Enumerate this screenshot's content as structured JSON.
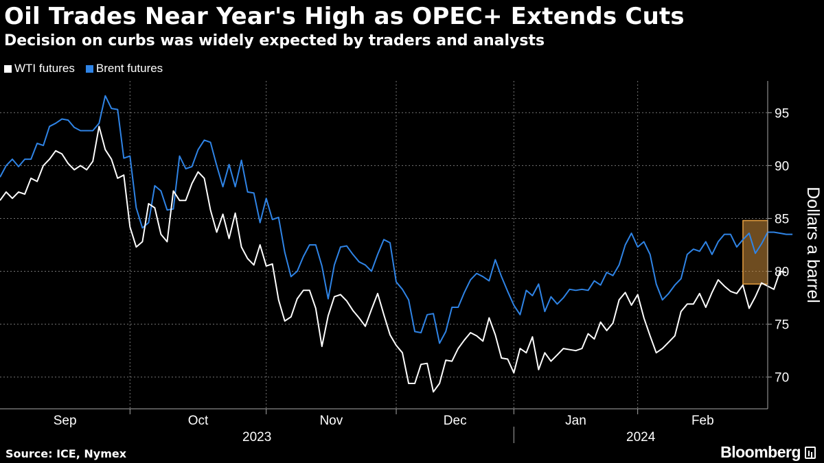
{
  "title": "Oil Trades Near Year's High as OPEC+ Extends Cuts",
  "subtitle": "Decision on curbs was widely expected by traders and analysts",
  "source": "Source: ICE, Nymex",
  "brand": "Bloomberg",
  "colors": {
    "wti": "#ffffff",
    "brent": "#2f84e6",
    "highlight": "#c98a3a",
    "grid": "#777777"
  },
  "chart_data": {
    "type": "line",
    "title": "Oil Trades Near Year's High as OPEC+ Extends Cuts",
    "ylabel": "Dollars a barrel",
    "ylim": [
      67,
      98
    ],
    "yticks": [
      70,
      75,
      80,
      85,
      90,
      95
    ],
    "xlim": [
      0,
      124
    ],
    "months": [
      {
        "label": "Sep",
        "start": 0,
        "end": 21
      },
      {
        "label": "Oct",
        "start": 21,
        "end": 43
      },
      {
        "label": "Nov",
        "start": 43,
        "end": 64
      },
      {
        "label": "Dec",
        "start": 64,
        "end": 83
      },
      {
        "label": "Jan",
        "start": 83,
        "end": 103
      },
      {
        "label": "Feb",
        "start": 103,
        "end": 124
      }
    ],
    "years": [
      {
        "label": "2023",
        "start": 0,
        "end": 83
      },
      {
        "label": "2024",
        "start": 83,
        "end": 124
      }
    ],
    "highlight": {
      "x_start": 120,
      "x_end": 124,
      "y_low": 78.8,
      "y_high": 84.8
    },
    "series": [
      {
        "name": "WTI futures",
        "values": [
          86.7,
          87.5,
          86.9,
          87.5,
          87.3,
          88.8,
          88.5,
          90.0,
          90.6,
          91.4,
          91.1,
          90.2,
          89.6,
          90.0,
          89.6,
          90.4,
          93.7,
          91.5,
          90.6,
          88.8,
          89.1,
          84.2,
          82.3,
          82.8,
          86.4,
          86.0,
          83.5,
          82.8,
          87.6,
          86.7,
          86.7,
          88.3,
          89.4,
          88.8,
          85.8,
          83.7,
          85.4,
          83.1,
          85.5,
          82.3,
          81.2,
          80.6,
          82.5,
          80.5,
          80.7,
          77.3,
          75.3,
          75.7,
          77.4,
          78.2,
          78.2,
          76.5,
          72.9,
          75.8,
          77.6,
          77.8,
          77.2,
          76.3,
          75.6,
          74.8,
          76.4,
          77.9,
          75.9,
          74.0,
          73.0,
          72.3,
          69.4,
          69.4,
          71.2,
          71.3,
          68.6,
          69.4,
          71.6,
          71.5,
          72.7,
          73.5,
          74.2,
          73.9,
          73.4,
          75.6,
          74.0,
          71.8,
          71.7,
          70.4,
          72.7,
          72.3,
          73.8,
          70.7,
          72.3,
          71.5,
          72.1,
          72.7,
          72.6,
          72.5,
          72.7,
          74.1,
          73.6,
          75.2,
          74.4,
          75.1,
          77.3,
          78.0,
          76.8,
          77.8,
          75.6,
          73.9,
          72.3,
          72.7,
          73.3,
          73.9,
          76.2,
          76.9,
          76.9,
          77.9,
          76.6,
          78.0,
          79.2,
          78.6,
          78.1,
          77.9,
          78.7,
          76.5,
          77.6,
          78.9,
          78.6,
          78.3,
          80.0,
          79.9
        ]
      },
      {
        "name": "Brent futures",
        "values": [
          88.9,
          90.0,
          90.6,
          89.9,
          90.6,
          90.6,
          92.1,
          91.9,
          93.7,
          94.0,
          94.4,
          94.3,
          93.6,
          93.3,
          93.3,
          93.3,
          94.0,
          96.6,
          95.4,
          95.3,
          90.7,
          90.9,
          86.0,
          84.1,
          84.6,
          88.1,
          87.6,
          85.8,
          85.9,
          90.9,
          89.7,
          89.9,
          91.5,
          92.4,
          92.2,
          90.0,
          88.0,
          90.1,
          88.0,
          90.5,
          87.5,
          87.4,
          84.6,
          86.9,
          84.9,
          85.1,
          81.8,
          79.5,
          80.0,
          81.4,
          82.5,
          82.5,
          80.5,
          77.4,
          80.6,
          82.3,
          82.4,
          81.6,
          80.9,
          80.6,
          80.0,
          81.6,
          83.0,
          82.7,
          79.0,
          78.3,
          77.3,
          74.3,
          74.2,
          75.9,
          76.0,
          73.2,
          74.3,
          76.6,
          76.6,
          78.0,
          79.2,
          79.8,
          79.5,
          79.1,
          81.1,
          79.5,
          78.1,
          76.8,
          75.9,
          78.2,
          77.7,
          78.8,
          76.2,
          77.6,
          76.9,
          77.5,
          78.3,
          78.2,
          78.3,
          78.2,
          79.1,
          78.7,
          79.9,
          79.6,
          80.6,
          82.5,
          83.6,
          82.3,
          82.8,
          81.6,
          78.8,
          77.3,
          77.9,
          78.7,
          79.3,
          81.6,
          82.1,
          81.9,
          82.8,
          81.6,
          82.8,
          83.5,
          83.5,
          82.3,
          83.0,
          83.6,
          81.7,
          82.6,
          83.7,
          83.7,
          83.6,
          83.5,
          83.5
        ]
      }
    ]
  },
  "legend": [
    {
      "label": "WTI futures",
      "color": "#ffffff"
    },
    {
      "label": "Brent futures",
      "color": "#2f84e6"
    }
  ]
}
